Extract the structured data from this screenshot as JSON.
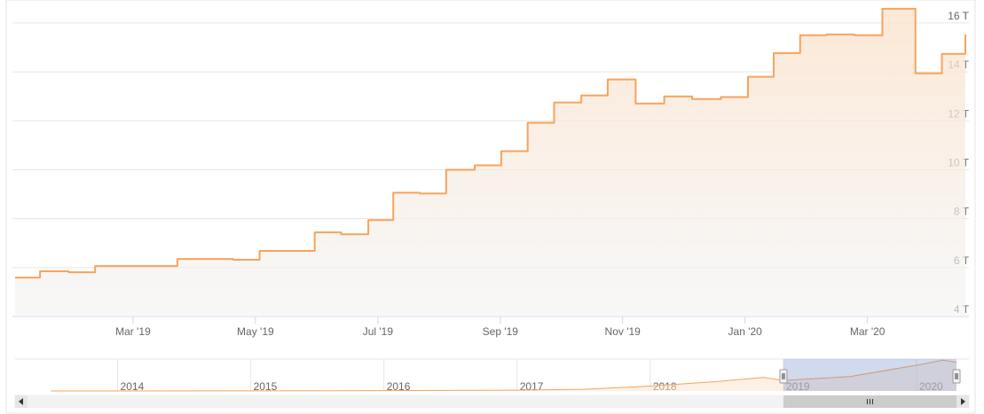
{
  "chart_data": {
    "type": "line",
    "step": true,
    "fill": true,
    "color": "#f7a35c",
    "grid": true,
    "x": [
      2019.006,
      2019.04,
      2019.079,
      2019.115,
      2019.227,
      2019.303,
      2019.339,
      2019.414,
      2019.45,
      2019.487,
      2019.521,
      2019.557,
      2019.593,
      2019.632,
      2019.668,
      2019.704,
      2019.74,
      2019.777,
      2019.813,
      2019.851,
      2019.89,
      2019.928,
      2019.967,
      2020.004,
      2020.039,
      2020.075,
      2020.111,
      2020.149,
      2020.187,
      2020.232,
      2020.268,
      2020.3
    ],
    "values": [
      5.59,
      5.85,
      5.81,
      6.06,
      6.35,
      6.32,
      6.68,
      7.44,
      7.36,
      7.94,
      9.06,
      9.03,
      10.0,
      10.18,
      10.76,
      11.92,
      12.75,
      13.04,
      13.69,
      12.71,
      13.0,
      12.89,
      12.97,
      13.8,
      14.77,
      15.5,
      15.53,
      15.5,
      16.58,
      13.94,
      14.74,
      15.53
    ],
    "xlim": [
      2019.0,
      2020.3
    ],
    "xticks": [
      {
        "value": 2019.1667,
        "label": "Mar '19"
      },
      {
        "value": 2019.3333,
        "label": "May '19"
      },
      {
        "value": 2019.5,
        "label": "Jul '19"
      },
      {
        "value": 2019.6667,
        "label": "Sep '19"
      },
      {
        "value": 2019.8333,
        "label": "Nov '19"
      },
      {
        "value": 2020.0,
        "label": "Jan '20"
      },
      {
        "value": 2020.1667,
        "label": "Mar '20"
      }
    ],
    "ylim": [
      4,
      16.65
    ],
    "yticks": [
      {
        "value": 4,
        "label": "4 T"
      },
      {
        "value": 6,
        "label": "6 T"
      },
      {
        "value": 8,
        "label": "8 T"
      },
      {
        "value": 10,
        "label": "10 T"
      },
      {
        "value": 12,
        "label": "12 T"
      },
      {
        "value": 14,
        "label": "14 T"
      },
      {
        "value": 16,
        "label": "16 T"
      }
    ],
    "navigator": {
      "x": [
        2013.5,
        2014,
        2015,
        2016,
        2017,
        2017.5,
        2018,
        2018.5,
        2018.85,
        2019,
        2019.5,
        2020,
        2020.2,
        2020.3
      ],
      "values": [
        0.01,
        0.02,
        0.05,
        0.15,
        0.4,
        0.9,
        2.6,
        5.0,
        7.2,
        5.6,
        7.7,
        13.7,
        16.4,
        15.3
      ],
      "xlim": [
        2013.33,
        2020.3
      ],
      "ylim": [
        0,
        17
      ],
      "xticks": [
        2014,
        2015,
        2016,
        2017,
        2018,
        2019,
        2020
      ]
    }
  }
}
